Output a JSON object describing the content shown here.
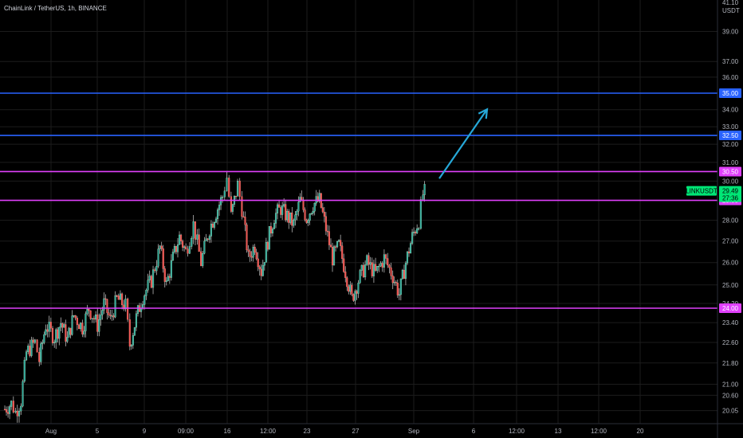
{
  "header": {
    "title": "ChainLink / TetherUS, 1h, BINANCE"
  },
  "currency": "USDT",
  "colors": {
    "background": "#000000",
    "grid": "#1c1c1c",
    "text": "#b2b5be",
    "candle_up": "#26a69a",
    "candle_down": "#ef5350",
    "wick": "#ffffff",
    "blue_line": "#2962ff",
    "magenta_line": "#e040fb",
    "arrow": "#26a8d8",
    "last_price": "#00e676"
  },
  "chart_data": {
    "type": "candlestick",
    "symbol": "LINKUSDT",
    "ylim": [
      19.8,
      41.5
    ],
    "scale": "log",
    "y_tick_labels": [
      "39.00",
      "37.00",
      "36.00",
      "35.00",
      "34.00",
      "33.00",
      "32.00",
      "31.00",
      "30.00",
      "28.00",
      "27.00",
      "26.00",
      "25.00",
      "24.20",
      "23.40",
      "22.60",
      "21.80",
      "21.00",
      "20.60",
      "20.05"
    ],
    "top_partial_label": "41.10",
    "x_tick_labels": [
      "Aug",
      "5",
      "9",
      "09:00",
      "16",
      "12:00",
      "23",
      "27",
      "Sep",
      "6",
      "12:00",
      "13",
      "12:00",
      "20"
    ],
    "horizontal_levels": [
      {
        "price": "35.00",
        "value": 35.0,
        "color": "blue"
      },
      {
        "price": "32.50",
        "value": 32.5,
        "color": "blue"
      },
      {
        "price": "30.50",
        "value": 30.5,
        "color": "magenta"
      },
      {
        "price": "29.00",
        "value": 29.0,
        "color": "magenta"
      },
      {
        "price": "24.00",
        "value": 24.0,
        "color": "magenta"
      }
    ],
    "last_price": {
      "label": "LINKUSDT",
      "value": "29.49",
      "countdown": "27:36"
    },
    "projection_arrow": {
      "from": 29.55,
      "to": 34.6
    },
    "price_path": [
      [
        0,
        20.1
      ],
      [
        0.6,
        20.3
      ],
      [
        1.0,
        20.0
      ],
      [
        1.5,
        20.4
      ],
      [
        2.0,
        22.2
      ],
      [
        2.8,
        22.6
      ],
      [
        3.2,
        21.9
      ],
      [
        3.8,
        23.3
      ],
      [
        4.6,
        22.8
      ],
      [
        5.2,
        23.4
      ],
      [
        5.8,
        22.7
      ],
      [
        6.4,
        23.7
      ],
      [
        7.2,
        23.2
      ],
      [
        7.8,
        24.0
      ],
      [
        8.6,
        23.3
      ],
      [
        9.2,
        24.2
      ],
      [
        9.8,
        23.5
      ],
      [
        10.4,
        24.4
      ],
      [
        11.2,
        24.1
      ],
      [
        11.6,
        22.5
      ],
      [
        12.2,
        23.6
      ],
      [
        12.8,
        24.5
      ],
      [
        13.6,
        25.2
      ],
      [
        14.4,
        26.7
      ],
      [
        15.0,
        25.0
      ],
      [
        15.6,
        26.2
      ],
      [
        16.2,
        27.2
      ],
      [
        16.8,
        26.5
      ],
      [
        17.5,
        27.8
      ],
      [
        18.2,
        26.0
      ],
      [
        19.0,
        27.6
      ],
      [
        19.6,
        28.4
      ],
      [
        20.2,
        29.2
      ],
      [
        20.6,
        30.2
      ],
      [
        21.0,
        28.2
      ],
      [
        21.6,
        29.8
      ],
      [
        22.0,
        28.6
      ],
      [
        22.6,
        26.2
      ],
      [
        23.2,
        26.8
      ],
      [
        23.8,
        25.6
      ],
      [
        24.4,
        27.0
      ],
      [
        25.0,
        28.2
      ],
      [
        25.6,
        28.6
      ],
      [
        26.2,
        28.2
      ],
      [
        26.8,
        27.8
      ],
      [
        27.4,
        29.0
      ],
      [
        28.0,
        28.1
      ],
      [
        28.6,
        28.8
      ],
      [
        29.2,
        29.0
      ],
      [
        29.8,
        27.6
      ],
      [
        30.4,
        26.2
      ],
      [
        31.0,
        26.8
      ],
      [
        31.6,
        25.6
      ],
      [
        32.2,
        24.4
      ],
      [
        32.8,
        25.2
      ],
      [
        33.6,
        26.0
      ],
      [
        34.4,
        25.5
      ],
      [
        35.2,
        26.2
      ],
      [
        36.0,
        25.4
      ],
      [
        36.6,
        24.6
      ],
      [
        37.2,
        26.0
      ],
      [
        37.8,
        27.2
      ],
      [
        38.4,
        28.0
      ],
      [
        38.8,
        29.3
      ],
      [
        39.1,
        29.5
      ]
    ]
  }
}
